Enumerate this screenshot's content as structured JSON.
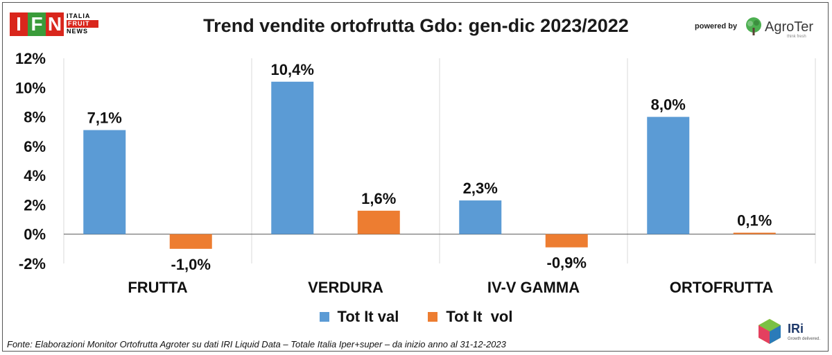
{
  "header": {
    "title": "Trend vendite ortofrutta Gdo: gen-dic 2023/2022",
    "logo_left_main": "IFN",
    "logo_left_line1": "ITALIA",
    "logo_left_line2": "FRUIT",
    "logo_left_line3": "NEWS",
    "powered_by": "powered by",
    "logo_right": "AgroTer",
    "logo_right_tagline": "think fresh"
  },
  "footer": {
    "source": "Fonte: Elaborazioni Monitor Ortofrutta Agroter su dati IRI Liquid Data – Totale Italia Iper+super –  da inizio anno al 31-12-2023",
    "iri_logo": "IRi",
    "iri_tagline": "Growth delivered."
  },
  "colors": {
    "val": "#5b9bd5",
    "vol": "#ed7d31",
    "grid": "#d9d9d9",
    "axis": "#555555"
  },
  "chart_data": {
    "type": "bar",
    "title": "Trend vendite ortofrutta Gdo: gen-dic 2023/2022",
    "categories": [
      "FRUTTA",
      "VERDURA",
      "IV-V GAMMA",
      "ORTOFRUTTA"
    ],
    "series": [
      {
        "name": "Tot It val",
        "values": [
          7.1,
          10.4,
          2.3,
          8.0
        ],
        "labels": [
          "7,1%",
          "10,4%",
          "2,3%",
          "8,0%"
        ]
      },
      {
        "name": "Tot It  vol",
        "values": [
          -1.0,
          1.6,
          -0.9,
          0.1
        ],
        "labels": [
          "-1,0%",
          "1,6%",
          "-0,9%",
          "0,1%"
        ]
      }
    ],
    "ylim": [
      -2,
      12
    ],
    "yticks": [
      -2,
      0,
      2,
      4,
      6,
      8,
      10,
      12
    ],
    "ytick_labels": [
      "-2%",
      "0%",
      "2%",
      "4%",
      "6%",
      "8%",
      "10%",
      "12%"
    ],
    "grid": "vertical separators between categories",
    "legend": "bottom-center"
  }
}
